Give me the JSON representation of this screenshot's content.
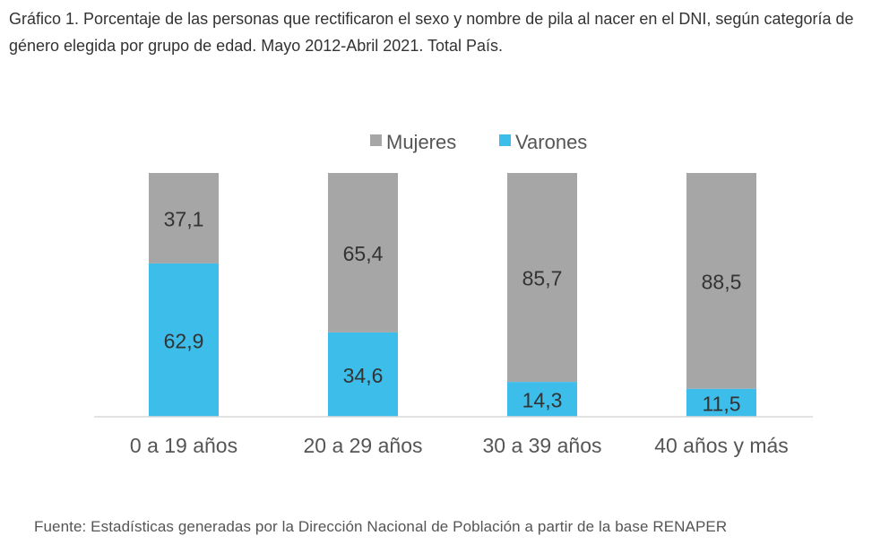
{
  "title": "Gráfico 1. Porcentaje de las personas que rectificaron el sexo y nombre de pila al nacer en el DNI, según categoría de género elegida por grupo de edad. Mayo 2012-Abril 2021. Total País.",
  "source": "Fuente: Estadísticas generadas por la Dirección Nacional de Población a partir de la base RENAPER",
  "chart_data": {
    "type": "bar",
    "stacked": true,
    "categories": [
      "0 a 19 años",
      "20 a 29 años",
      "30 a 39 años",
      "40 años y más"
    ],
    "series": [
      {
        "name": "Varones",
        "values": [
          62.9,
          34.6,
          14.3,
          11.5
        ],
        "labels": [
          "62,9",
          "34,6",
          "14,3",
          "11,5"
        ],
        "color": "#3dbde9"
      },
      {
        "name": "Mujeres",
        "values": [
          37.1,
          65.4,
          85.7,
          88.5
        ],
        "labels": [
          "37,1",
          "65,4",
          "85,7",
          "88,5"
        ],
        "color": "#a6a6a6"
      }
    ],
    "legend": [
      "Mujeres",
      "Varones"
    ],
    "legend_position": "top-center",
    "ylim": [
      0,
      100
    ],
    "grid": false
  }
}
